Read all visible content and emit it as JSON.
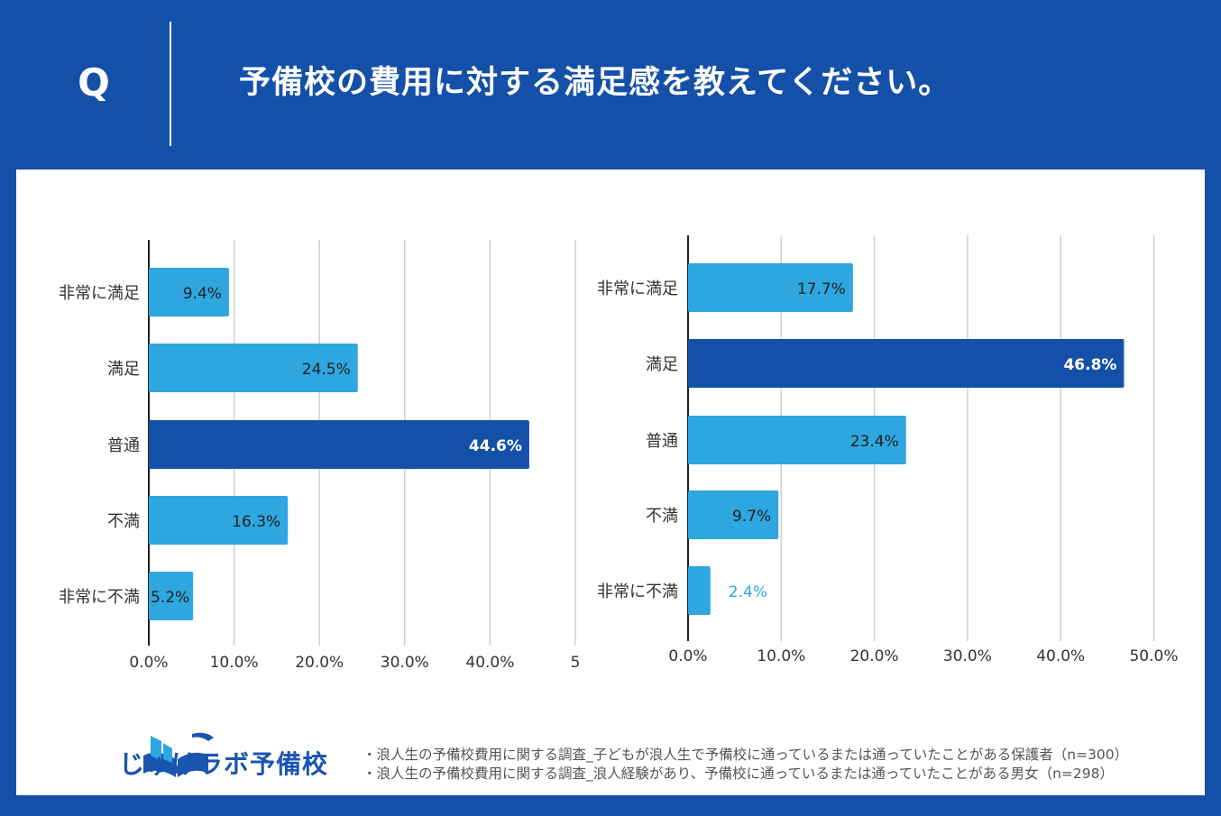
{
  "header": {
    "q_mark": "Q",
    "question": "予備校の費用に対する満足感を教えてください。"
  },
  "chart_data": [
    {
      "type": "bar",
      "orientation": "horizontal",
      "categories": [
        "非常に満足",
        "満足",
        "普通",
        "不満",
        "非常に不満"
      ],
      "values": [
        9.4,
        24.5,
        44.6,
        16.3,
        5.2
      ],
      "value_labels": [
        "9.4%",
        "24.5%",
        "44.6%",
        "16.3%",
        "5.2%"
      ],
      "highlight_index": 2,
      "xlim": [
        0,
        50
      ],
      "xticks": [
        "0.0%",
        "10.0%",
        "20.0%",
        "30.0%",
        "40.0%",
        "5"
      ],
      "grid": true
    },
    {
      "type": "bar",
      "orientation": "horizontal",
      "categories": [
        "非常に満足",
        "満足",
        "普通",
        "不満",
        "非常に不満"
      ],
      "values": [
        17.7,
        46.8,
        23.4,
        9.7,
        2.4
      ],
      "value_labels": [
        "17.7%",
        "46.8%",
        "23.4%",
        "9.7%",
        "2.4%"
      ],
      "highlight_index": 1,
      "xlim": [
        0,
        50
      ],
      "xticks": [
        "0.0%",
        "10.0%",
        "20.0%",
        "30.0%",
        "40.0%",
        "50.0%"
      ],
      "grid": true
    }
  ],
  "colors": {
    "light": "#2ea6e0",
    "dark": "#1550a8",
    "grid": "#cfcfcf",
    "outside_label": "#2ea6e0"
  },
  "logo": {
    "text": "じゅけラボ予備校",
    "icon": "open-book-icon"
  },
  "footnotes": [
    "・浪人生の予備校費用に関する調査_子どもが浪人生で予備校に通っているまたは通っていたことがある保護者（n=300）",
    "・浪人生の予備校費用に関する調査_浪人経験があり、予備校に通っているまたは通っていたことがある男女（n=298）"
  ]
}
